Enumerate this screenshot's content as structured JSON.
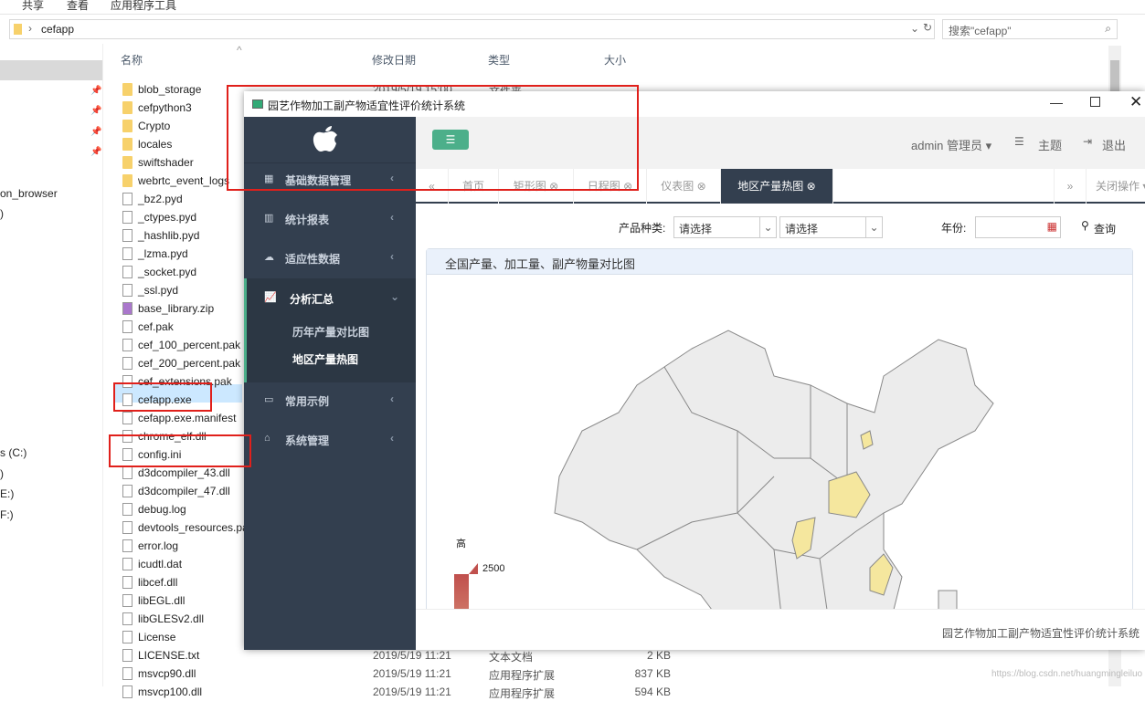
{
  "explorer": {
    "ribbon_tabs": [
      "共享",
      "查看",
      "应用程序工具"
    ],
    "breadcrumb": "cefapp",
    "search_placeholder": "搜索\"cefapp\"",
    "nav_items": [
      "on_browser",
      ")",
      "s (C:)",
      ")",
      "E:)",
      "F:)"
    ],
    "columns": [
      "名称",
      "修改日期",
      "类型",
      "大小"
    ],
    "files": [
      {
        "name": "blob_storage",
        "date": "2019/5/19 15:00",
        "type": "文件夹",
        "size": "",
        "kind": "folder"
      },
      {
        "name": "cefpython3",
        "kind": "folder"
      },
      {
        "name": "Crypto",
        "kind": "folder"
      },
      {
        "name": "locales",
        "kind": "folder"
      },
      {
        "name": "swiftshader",
        "kind": "folder"
      },
      {
        "name": "webrtc_event_logs",
        "kind": "folder"
      },
      {
        "name": "_bz2.pyd",
        "kind": "file"
      },
      {
        "name": "_ctypes.pyd",
        "kind": "file"
      },
      {
        "name": "_hashlib.pyd",
        "kind": "file"
      },
      {
        "name": "_lzma.pyd",
        "kind": "file"
      },
      {
        "name": "_socket.pyd",
        "kind": "file"
      },
      {
        "name": "_ssl.pyd",
        "kind": "file"
      },
      {
        "name": "base_library.zip",
        "kind": "zip"
      },
      {
        "name": "cef.pak",
        "kind": "file"
      },
      {
        "name": "cef_100_percent.pak",
        "kind": "file"
      },
      {
        "name": "cef_200_percent.pak",
        "kind": "file"
      },
      {
        "name": "cef_extensions.pak",
        "kind": "file"
      },
      {
        "name": "cefapp.exe",
        "kind": "exe"
      },
      {
        "name": "cefapp.exe.manifest",
        "kind": "file"
      },
      {
        "name": "chrome_elf.dll",
        "kind": "file"
      },
      {
        "name": "config.ini",
        "kind": "file"
      },
      {
        "name": "d3dcompiler_43.dll",
        "kind": "file"
      },
      {
        "name": "d3dcompiler_47.dll",
        "kind": "file"
      },
      {
        "name": "debug.log",
        "kind": "file"
      },
      {
        "name": "devtools_resources.pak",
        "kind": "file"
      },
      {
        "name": "error.log",
        "kind": "file"
      },
      {
        "name": "icudtl.dat",
        "kind": "file"
      },
      {
        "name": "libcef.dll",
        "kind": "file"
      },
      {
        "name": "libEGL.dll",
        "kind": "file"
      },
      {
        "name": "libGLESv2.dll",
        "kind": "file"
      },
      {
        "name": "License",
        "kind": "file"
      },
      {
        "name": "LICENSE.txt",
        "date": "2019/5/19 11:21",
        "type": "文本文档",
        "size": "2 KB",
        "kind": "file"
      },
      {
        "name": "msvcp90.dll",
        "date": "2019/5/19 11:21",
        "type": "应用程序扩展",
        "size": "837 KB",
        "kind": "file"
      },
      {
        "name": "msvcp100.dll",
        "date": "2019/5/19 11:21",
        "type": "应用程序扩展",
        "size": "594 KB",
        "kind": "file"
      }
    ],
    "watermark": "https://blog.csdn.net/huangmingleiluo"
  },
  "app": {
    "title": "园艺作物加工副产物适宜性评价统计系统",
    "sidebar": [
      {
        "label": "基础数据管理",
        "icon": "grid-icon"
      },
      {
        "label": "统计报表",
        "icon": "bar-chart-icon"
      },
      {
        "label": "适应性数据",
        "icon": "cloud-icon"
      },
      {
        "label": "分析汇总",
        "icon": "line-chart-icon",
        "expanded": true,
        "children": [
          "历年产量对比图",
          "地区产量热图"
        ]
      },
      {
        "label": "常用示例",
        "icon": "comment-icon"
      },
      {
        "label": "系统管理",
        "icon": "home-icon"
      }
    ],
    "header": {
      "user": "admin 管理员",
      "theme": "主题",
      "logout": "退出"
    },
    "tabs": [
      "首页",
      "矩形图",
      "日程图",
      "仪表图",
      "地区产量热图"
    ],
    "active_tab": "地区产量热图",
    "close_ops": "关闭操作",
    "filters": {
      "product_label": "产品种类:",
      "select1": "请选择",
      "select2": "请选择",
      "year_label": "年份:",
      "year_value": "",
      "query": "查询"
    },
    "panel_title": "全国产量、加工量、副产物量对比图",
    "legend": {
      "high_label": "高",
      "max": "2500"
    },
    "footer": "园艺作物加工副产物适宜性评价统计系统",
    "colors": {
      "sidebar": "#333f4f",
      "accent": "#4caf8a",
      "highlight": "#f5e79e",
      "legend": "#c0504d"
    }
  }
}
